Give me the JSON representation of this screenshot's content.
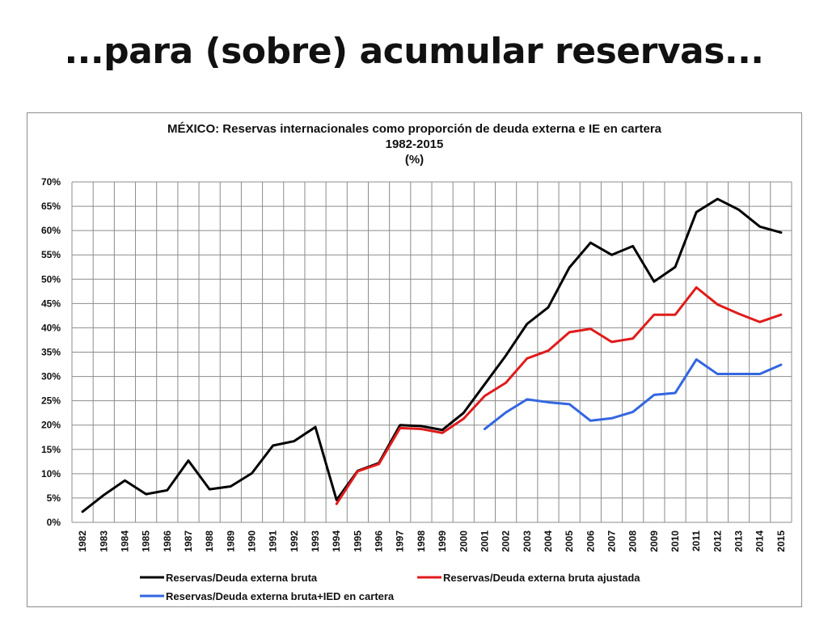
{
  "slide": {
    "title": "...para (sobre) acumular reservas..."
  },
  "colors": {
    "series1": "#000000",
    "series2": "#e01b1b",
    "series3": "#3366e0",
    "grid": "#8c8c8c"
  },
  "chart_data": {
    "type": "line",
    "title": "MÉXICO: Reservas internacionales como proporción de deuda externa e IE en cartera",
    "subtitle": "1982-2015",
    "unit_label": "(%)",
    "xlabel": "",
    "ylabel": "",
    "ylim": [
      0,
      70
    ],
    "y_ticks": [
      "0%",
      "5%",
      "10%",
      "15%",
      "20%",
      "25%",
      "30%",
      "35%",
      "40%",
      "45%",
      "50%",
      "55%",
      "60%",
      "65%",
      "70%"
    ],
    "grid": true,
    "legend_position": "bottom",
    "x": [
      "1982",
      "1983",
      "1984",
      "1985",
      "1986",
      "1987",
      "1988",
      "1989",
      "1990",
      "1991",
      "1992",
      "1993",
      "1994",
      "1995",
      "1996",
      "1997",
      "1998",
      "1999",
      "2000",
      "2001",
      "2002",
      "2003",
      "2004",
      "2005",
      "2006",
      "2007",
      "2008",
      "2009",
      "2010",
      "2011",
      "2012",
      "2013",
      "2014",
      "2015"
    ],
    "series": [
      {
        "name": "Reservas/Deuda externa bruta",
        "color": "#000000",
        "values": [
          2.2,
          5.6,
          8.6,
          5.8,
          6.6,
          12.7,
          6.8,
          7.4,
          10.1,
          15.8,
          16.7,
          19.6,
          4.6,
          10.6,
          12.2,
          20.0,
          19.8,
          19.0,
          22.5,
          28.4,
          34.3,
          40.8,
          44.2,
          52.4,
          57.5,
          55.0,
          56.8,
          49.5,
          52.5,
          63.8,
          66.5,
          64.3,
          60.8,
          59.6
        ]
      },
      {
        "name": "Reservas/Deuda externa bruta ajustada",
        "color": "#e01b1b",
        "values": [
          null,
          null,
          null,
          null,
          null,
          null,
          null,
          null,
          null,
          null,
          null,
          null,
          3.8,
          10.5,
          12.0,
          19.4,
          19.2,
          18.4,
          21.3,
          26.0,
          28.7,
          33.7,
          35.3,
          39.1,
          39.8,
          37.1,
          37.8,
          42.7,
          42.7,
          48.3,
          44.8,
          42.9,
          41.2,
          42.7
        ]
      },
      {
        "name": "Reservas/Deuda externa bruta+IED en cartera",
        "color": "#3366e0",
        "values": [
          null,
          null,
          null,
          null,
          null,
          null,
          null,
          null,
          null,
          null,
          null,
          null,
          null,
          null,
          null,
          null,
          null,
          null,
          null,
          19.2,
          22.6,
          25.3,
          24.7,
          24.3,
          20.9,
          21.4,
          22.7,
          26.2,
          26.6,
          33.5,
          30.5,
          30.5,
          30.5,
          32.4
        ]
      }
    ]
  }
}
